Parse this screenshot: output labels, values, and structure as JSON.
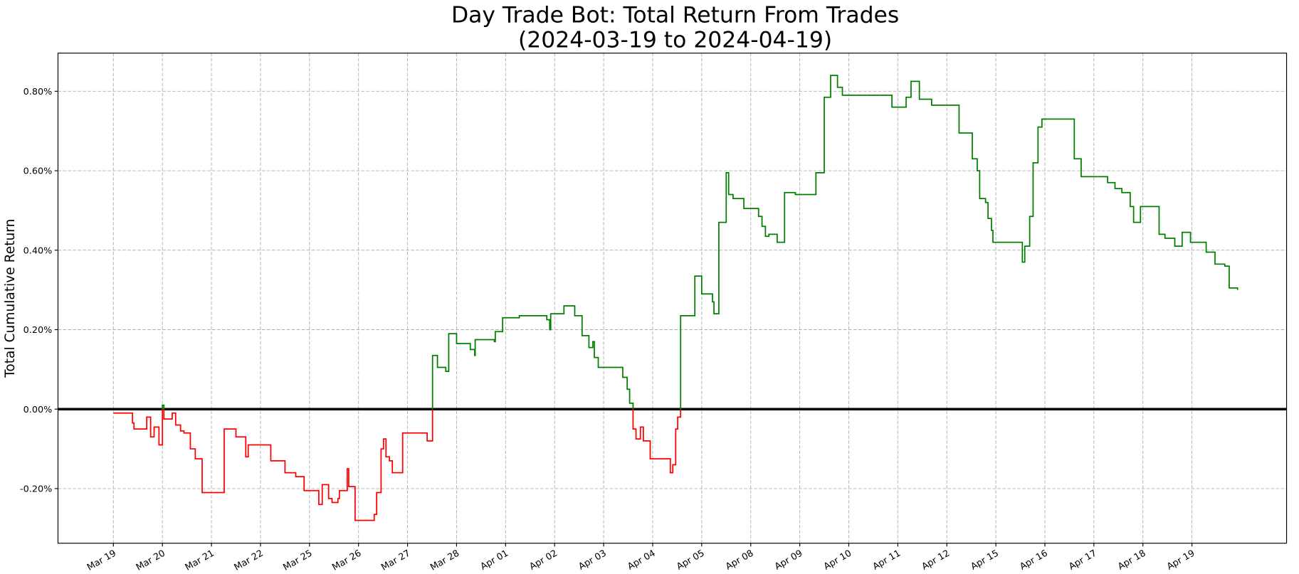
{
  "chart_data": {
    "type": "step",
    "title": "Day Trade Bot: Total Return From Trades",
    "subtitle": "(2024-03-19 to 2024-04-19)",
    "ylabel": "Total Cumulative Return",
    "xlim": [
      -1.13,
      23.93
    ],
    "ylim": [
      -0.3375,
      0.896
    ],
    "xticks": [
      {
        "value": 0,
        "label": "Mar 19"
      },
      {
        "value": 1,
        "label": "Mar 20"
      },
      {
        "value": 2,
        "label": "Mar 21"
      },
      {
        "value": 3,
        "label": "Mar 22"
      },
      {
        "value": 4,
        "label": "Mar 25"
      },
      {
        "value": 5,
        "label": "Mar 26"
      },
      {
        "value": 6,
        "label": "Mar 27"
      },
      {
        "value": 7,
        "label": "Mar 28"
      },
      {
        "value": 8,
        "label": "Apr 01"
      },
      {
        "value": 9,
        "label": "Apr 02"
      },
      {
        "value": 10,
        "label": "Apr 03"
      },
      {
        "value": 11,
        "label": "Apr 04"
      },
      {
        "value": 12,
        "label": "Apr 05"
      },
      {
        "value": 13,
        "label": "Apr 08"
      },
      {
        "value": 14,
        "label": "Apr 09"
      },
      {
        "value": 15,
        "label": "Apr 10"
      },
      {
        "value": 16,
        "label": "Apr 11"
      },
      {
        "value": 17,
        "label": "Apr 12"
      },
      {
        "value": 18,
        "label": "Apr 15"
      },
      {
        "value": 19,
        "label": "Apr 16"
      },
      {
        "value": 20,
        "label": "Apr 17"
      },
      {
        "value": 21,
        "label": "Apr 18"
      },
      {
        "value": 22,
        "label": "Apr 19"
      }
    ],
    "yticks": [
      {
        "value": -0.2,
        "label": "-0.20%"
      },
      {
        "value": 0,
        "label": "0.00%"
      },
      {
        "value": 0.2,
        "label": "0.20%"
      },
      {
        "value": 0.4,
        "label": "0.40%"
      },
      {
        "value": 0.6,
        "label": "0.60%"
      },
      {
        "value": 0.8,
        "label": "0.80%"
      }
    ],
    "grid": true,
    "hline": 0,
    "positive_color": "#008000",
    "negative_color": "#ff0000",
    "x": [
      0,
      0.39,
      0.42,
      0.68,
      0.76,
      0.83,
      0.93,
      1.0,
      1.03,
      1.2,
      1.27,
      1.37,
      1.44,
      1.57,
      1.67,
      1.81,
      2.26,
      2.5,
      2.7,
      2.75,
      3.21,
      3.5,
      3.72,
      3.89,
      4.19,
      4.26,
      4.39,
      4.46,
      4.58,
      4.61,
      4.77,
      4.8,
      4.93,
      5.32,
      5.37,
      5.46,
      5.51,
      5.56,
      5.63,
      5.69,
      5.9,
      6.4,
      6.51,
      6.61,
      6.78,
      6.84,
      7.0,
      7.28,
      7.37,
      7.38,
      7.77,
      7.79,
      7.94,
      8.28,
      8.84,
      8.9,
      8.92,
      9.19,
      9.41,
      9.56,
      9.7,
      9.78,
      9.81,
      9.89,
      10.39,
      10.48,
      10.53,
      10.6,
      10.66,
      10.75,
      10.81,
      10.95,
      11.36,
      11.41,
      11.47,
      11.51,
      11.57,
      11.86,
      12.0,
      12.22,
      12.25,
      12.35,
      12.5,
      12.55,
      12.64,
      12.86,
      13.16,
      13.23,
      13.3,
      13.37,
      13.54,
      13.69,
      13.91,
      14.33,
      14.5,
      14.63,
      14.77,
      14.87,
      15.88,
      16.17,
      16.27,
      16.44,
      16.69,
      17.25,
      17.52,
      17.62,
      17.67,
      17.79,
      17.84,
      17.91,
      17.94,
      18.54,
      18.59,
      18.69,
      18.76,
      18.86,
      18.94,
      19.6,
      19.74,
      20.28,
      20.43,
      20.57,
      20.74,
      20.81,
      20.95,
      21.33,
      21.45,
      21.65,
      21.8,
      21.97,
      22.29,
      22.47,
      22.67,
      22.76,
      22.93
    ],
    "values": [
      -0.01,
      -0.035,
      -0.05,
      -0.02,
      -0.07,
      -0.045,
      -0.09,
      0.01,
      -0.025,
      -0.01,
      -0.04,
      -0.055,
      -0.06,
      -0.1,
      -0.125,
      -0.21,
      -0.05,
      -0.07,
      -0.12,
      -0.09,
      -0.13,
      -0.16,
      -0.17,
      -0.205,
      -0.24,
      -0.19,
      -0.225,
      -0.235,
      -0.225,
      -0.205,
      -0.15,
      -0.195,
      -0.28,
      -0.265,
      -0.21,
      -0.1,
      -0.075,
      -0.12,
      -0.13,
      -0.16,
      -0.06,
      -0.08,
      0.135,
      0.105,
      0.095,
      0.19,
      0.165,
      0.15,
      0.135,
      0.175,
      0.17,
      0.195,
      0.23,
      0.235,
      0.225,
      0.2,
      0.24,
      0.26,
      0.235,
      0.185,
      0.155,
      0.17,
      0.13,
      0.105,
      0.08,
      0.05,
      0.015,
      -0.05,
      -0.075,
      -0.045,
      -0.08,
      -0.125,
      -0.16,
      -0.14,
      -0.05,
      -0.02,
      0.235,
      0.335,
      0.29,
      0.27,
      0.24,
      0.47,
      0.595,
      0.54,
      0.53,
      0.505,
      0.485,
      0.46,
      0.435,
      0.44,
      0.42,
      0.545,
      0.54,
      0.595,
      0.785,
      0.84,
      0.81,
      0.79,
      0.76,
      0.785,
      0.825,
      0.78,
      0.765,
      0.695,
      0.63,
      0.6,
      0.53,
      0.52,
      0.48,
      0.45,
      0.42,
      0.37,
      0.41,
      0.485,
      0.62,
      0.71,
      0.73,
      0.63,
      0.585,
      0.57,
      0.555,
      0.545,
      0.51,
      0.47,
      0.51,
      0.44,
      0.43,
      0.41,
      0.445,
      0.42,
      0.395,
      0.365,
      0.36,
      0.305,
      0.3
    ]
  }
}
